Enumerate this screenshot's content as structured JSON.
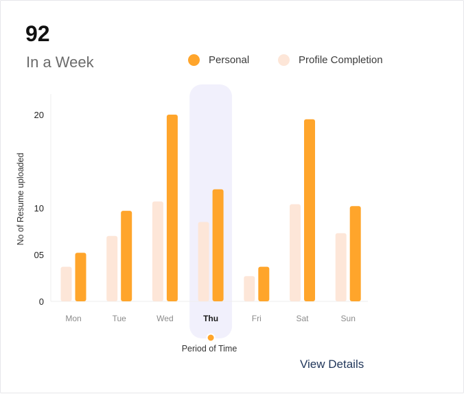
{
  "header": {
    "total": "92",
    "subtitle": "In a Week"
  },
  "legend": {
    "personal": "Personal",
    "profile": "Profile Completion"
  },
  "footer": {
    "view_details": "View Details"
  },
  "colors": {
    "personal": "#ffa52b",
    "profile": "#fde6d8",
    "highlight": "#f1f0fc",
    "axis": "#eeeeee"
  },
  "chart_data": {
    "type": "bar",
    "categories": [
      "Mon",
      "Tue",
      "Wed",
      "Thu",
      "Fri",
      "Sat",
      "Sun"
    ],
    "selected_category": "Thu",
    "series": [
      {
        "name": "Profile Completion",
        "values": [
          3.7,
          7.0,
          10.7,
          8.5,
          2.7,
          10.4,
          7.3
        ]
      },
      {
        "name": "Personal",
        "values": [
          5.2,
          9.7,
          20.0,
          12.0,
          3.7,
          19.5,
          10.2
        ]
      }
    ],
    "yticks": [
      "0",
      "05",
      "10",
      "20"
    ],
    "ytick_values": [
      0,
      5,
      10,
      20
    ],
    "xlabel": "Period of Time",
    "ylabel": "No of Resume uploaded",
    "grid": false,
    "legend_position": "top"
  }
}
